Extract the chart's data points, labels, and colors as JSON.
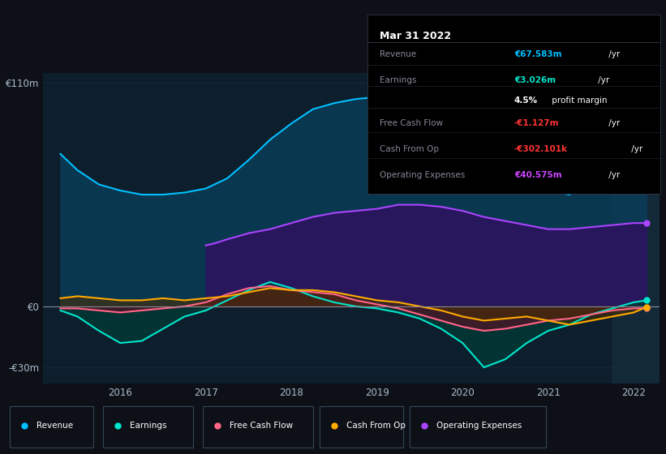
{
  "bg_color": "#0d1117",
  "plot_area_bg": "#0d1f2d",
  "ylabel_110": "€110m",
  "ylabel_0": "€0",
  "ylabel_neg30": "-€30m",
  "tooltip_title": "Mar 31 2022",
  "tooltip_rows": [
    {
      "label": "Revenue",
      "value": "€67.583m",
      "unit": " /yr",
      "value_color": "#00bfff"
    },
    {
      "label": "Earnings",
      "value": "€3.026m",
      "unit": " /yr",
      "value_color": "#00e5cc"
    },
    {
      "label": "",
      "value": "4.5%",
      "unit": " profit margin",
      "value_color": "#ffffff"
    },
    {
      "label": "Free Cash Flow",
      "value": "-€1.127m",
      "unit": " /yr",
      "value_color": "#ff3333"
    },
    {
      "label": "Cash From Op",
      "value": "-€302.101k",
      "unit": " /yr",
      "value_color": "#ff3333"
    },
    {
      "label": "Operating Expenses",
      "value": "€40.575m",
      "unit": " /yr",
      "value_color": "#cc44ff"
    }
  ],
  "legend_items": [
    {
      "label": "Revenue",
      "color": "#00bfff"
    },
    {
      "label": "Earnings",
      "color": "#00e5cc"
    },
    {
      "label": "Free Cash Flow",
      "color": "#ff6688"
    },
    {
      "label": "Cash From Op",
      "color": "#ffaa00"
    },
    {
      "label": "Operating Expenses",
      "color": "#aa44ff"
    }
  ],
  "revenue": {
    "x": [
      2015.3,
      2015.5,
      2015.75,
      2016.0,
      2016.25,
      2016.5,
      2016.75,
      2017.0,
      2017.25,
      2017.5,
      2017.75,
      2018.0,
      2018.25,
      2018.5,
      2018.75,
      2019.0,
      2019.25,
      2019.5,
      2019.75,
      2020.0,
      2020.25,
      2020.5,
      2020.75,
      2021.0,
      2021.25,
      2021.5,
      2021.75,
      2022.0,
      2022.15
    ],
    "y": [
      75,
      67,
      60,
      57,
      55,
      55,
      56,
      58,
      63,
      72,
      82,
      90,
      97,
      100,
      102,
      103,
      102,
      99,
      93,
      87,
      78,
      70,
      65,
      57,
      55,
      60,
      65,
      67,
      68
    ],
    "color": "#00bfff",
    "fill_color": "#0a3a55",
    "alpha": 0.9
  },
  "operating_expenses": {
    "x": [
      2017.0,
      2017.1,
      2017.25,
      2017.5,
      2017.75,
      2018.0,
      2018.25,
      2018.5,
      2018.75,
      2019.0,
      2019.25,
      2019.5,
      2019.75,
      2020.0,
      2020.25,
      2020.5,
      2020.75,
      2021.0,
      2021.25,
      2021.5,
      2021.75,
      2022.0,
      2022.15
    ],
    "y": [
      30,
      31,
      33,
      36,
      38,
      41,
      44,
      46,
      47,
      48,
      50,
      50,
      49,
      47,
      44,
      42,
      40,
      38,
      38,
      39,
      40,
      41,
      41
    ],
    "color": "#aa44ff",
    "fill_color": "#2d1460",
    "alpha": 0.9
  },
  "earnings": {
    "x": [
      2015.3,
      2015.5,
      2015.75,
      2016.0,
      2016.25,
      2016.5,
      2016.75,
      2017.0,
      2017.25,
      2017.5,
      2017.75,
      2018.0,
      2018.25,
      2018.5,
      2018.75,
      2019.0,
      2019.25,
      2019.5,
      2019.75,
      2020.0,
      2020.25,
      2020.5,
      2020.75,
      2021.0,
      2021.25,
      2021.5,
      2021.75,
      2022.0,
      2022.15
    ],
    "y": [
      -2,
      -5,
      -12,
      -18,
      -17,
      -11,
      -5,
      -2,
      3,
      8,
      12,
      9,
      5,
      2,
      0,
      -1,
      -3,
      -6,
      -11,
      -18,
      -30,
      -26,
      -18,
      -12,
      -9,
      -4,
      -1,
      2,
      3
    ],
    "color": "#00e5cc",
    "fill_color": "#003a35",
    "alpha": 0.75
  },
  "free_cash_flow": {
    "x": [
      2015.3,
      2015.5,
      2015.75,
      2016.0,
      2016.25,
      2016.5,
      2016.75,
      2017.0,
      2017.25,
      2017.5,
      2017.75,
      2018.0,
      2018.25,
      2018.5,
      2018.75,
      2019.0,
      2019.25,
      2019.5,
      2019.75,
      2020.0,
      2020.25,
      2020.5,
      2020.75,
      2021.0,
      2021.25,
      2021.5,
      2021.75,
      2022.0,
      2022.15
    ],
    "y": [
      -1,
      -1,
      -2,
      -3,
      -2,
      -1,
      0,
      2,
      6,
      9,
      10,
      8,
      7,
      6,
      3,
      1,
      -1,
      -4,
      -7,
      -10,
      -12,
      -11,
      -9,
      -7,
      -6,
      -4,
      -2,
      -1,
      -1
    ],
    "color": "#ff6688",
    "fill_color": "#5a1025",
    "alpha": 0.65
  },
  "cash_from_op": {
    "x": [
      2015.3,
      2015.5,
      2015.75,
      2016.0,
      2016.25,
      2016.5,
      2016.75,
      2017.0,
      2017.25,
      2017.5,
      2017.75,
      2018.0,
      2018.25,
      2018.5,
      2018.75,
      2019.0,
      2019.25,
      2019.5,
      2019.75,
      2020.0,
      2020.25,
      2020.5,
      2020.75,
      2021.0,
      2021.25,
      2021.5,
      2021.75,
      2022.0,
      2022.15
    ],
    "y": [
      4,
      5,
      4,
      3,
      3,
      4,
      3,
      4,
      5,
      7,
      9,
      8,
      8,
      7,
      5,
      3,
      2,
      0,
      -2,
      -5,
      -7,
      -6,
      -5,
      -7,
      -9,
      -7,
      -5,
      -3,
      -0.3
    ],
    "color": "#ffaa00",
    "fill_color": "#4a2e00",
    "alpha": 0.55
  },
  "ylim": [
    -38,
    115
  ],
  "xlim": [
    2015.1,
    2022.3
  ],
  "vspan_start": 2021.75,
  "vspan_color": "#1a3040",
  "zero_line_color": "#888899",
  "grid_color": "#1a2a3a",
  "marker_size": 5
}
